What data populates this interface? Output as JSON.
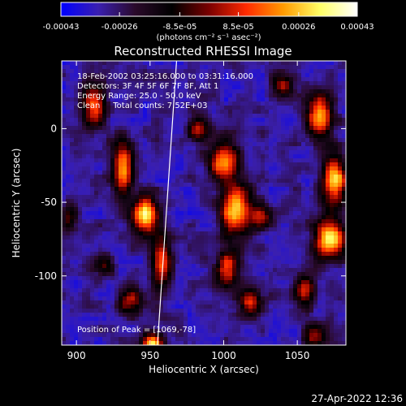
{
  "chart_data": {
    "type": "heatmap",
    "title": "Reconstructed RHESSI Image",
    "xlabel": "Heliocentric X (arcsec)",
    "ylabel": "Heliocentric Y (arcsec)",
    "xlim": [
      890,
      1083
    ],
    "ylim": [
      -147,
      46
    ],
    "x_ticks": [
      900,
      950,
      1000,
      1050
    ],
    "y_ticks": [
      0,
      -50,
      -100
    ],
    "colorbar": {
      "colors": [
        "#0000ff",
        "#3a1fb0",
        "#2a0a2a",
        "#000000",
        "#7a0000",
        "#ff2a00",
        "#ff9a00",
        "#ffff66",
        "#ffffff"
      ],
      "range": [
        -0.00043,
        0.00043
      ],
      "tick_values": [
        -0.00043,
        -0.00026,
        -8.5e-05,
        8.5e-05,
        0.00026,
        0.00043
      ],
      "tick_labels": [
        "-0.00043",
        "-0.00026",
        "-8.5e-05",
        "8.5e-05",
        "0.00026",
        "0.00043"
      ],
      "units": "(photons cm⁻² s⁻¹ asec⁻²)"
    },
    "annotations": [
      "18-Feb-2002 03:25:16.000 to 03:31:16.000",
      "Detectors: 3F 4F 5F 6F 7F 8F, Att 1",
      "Energy Range: 25.0 - 50.0 keV",
      "Clean     Total counts: 7.52E+03"
    ],
    "peak_label": "Position of Peak = [1069,-78]",
    "peak": [
      1069,
      -78
    ],
    "limb_line": [
      [
        968,
        46
      ],
      [
        955,
        -147
      ]
    ],
    "blobs": [
      {
        "x": 912,
        "y": 15,
        "sx": 6,
        "sy": 10,
        "a": 0.7
      },
      {
        "x": 932,
        "y": -28,
        "sx": 5,
        "sy": 12,
        "a": 0.8
      },
      {
        "x": 947,
        "y": -58,
        "sx": 6,
        "sy": 9,
        "a": 0.95
      },
      {
        "x": 958,
        "y": -90,
        "sx": 5,
        "sy": 12,
        "a": 0.7
      },
      {
        "x": 937,
        "y": -118,
        "sx": 6,
        "sy": 6,
        "a": 0.55
      },
      {
        "x": 952,
        "y": -146,
        "sx": 5,
        "sy": 5,
        "a": 0.9
      },
      {
        "x": 983,
        "y": 0,
        "sx": 5,
        "sy": 6,
        "a": 0.55
      },
      {
        "x": 1000,
        "y": -22,
        "sx": 7,
        "sy": 9,
        "a": 0.8
      },
      {
        "x": 1008,
        "y": -55,
        "sx": 7,
        "sy": 12,
        "a": 0.9
      },
      {
        "x": 1025,
        "y": -60,
        "sx": 5,
        "sy": 6,
        "a": 0.5
      },
      {
        "x": 1003,
        "y": -95,
        "sx": 6,
        "sy": 9,
        "a": 0.65
      },
      {
        "x": 1018,
        "y": -118,
        "sx": 6,
        "sy": 6,
        "a": 0.55
      },
      {
        "x": 1040,
        "y": 30,
        "sx": 5,
        "sy": 6,
        "a": 0.45
      },
      {
        "x": 1065,
        "y": 8,
        "sx": 6,
        "sy": 10,
        "a": 0.9
      },
      {
        "x": 1075,
        "y": -35,
        "sx": 6,
        "sy": 12,
        "a": 0.9
      },
      {
        "x": 1072,
        "y": -75,
        "sx": 7,
        "sy": 9,
        "a": 1.0
      },
      {
        "x": 1055,
        "y": -110,
        "sx": 5,
        "sy": 7,
        "a": 0.55
      },
      {
        "x": 1062,
        "y": -140,
        "sx": 5,
        "sy": 6,
        "a": 0.5
      },
      {
        "x": 895,
        "y": -60,
        "sx": 4,
        "sy": 8,
        "a": 0.35
      },
      {
        "x": 918,
        "y": -92,
        "sx": 5,
        "sy": 5,
        "a": 0.4
      }
    ]
  },
  "footer": {
    "timestamp": "27-Apr-2022 12:36"
  }
}
